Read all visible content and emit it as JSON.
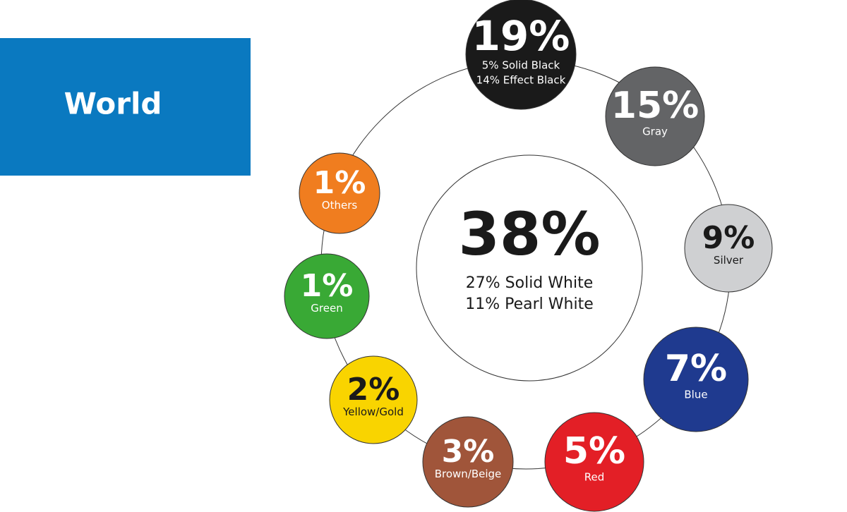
{
  "chart_data": {
    "type": "bubble",
    "title": "World",
    "title_color": "#0a79c0",
    "values": [
      38,
      19,
      15,
      9,
      7,
      5,
      3,
      2,
      1,
      1
    ],
    "value_labels": [
      "38%",
      "19%",
      "15%",
      "9%",
      "7%",
      "5%",
      "3%",
      "2%",
      "1%",
      "1%"
    ],
    "labels": [
      [
        "27% Solid White",
        "11% Pearl White"
      ],
      [
        "5% Solid Black",
        "14% Effect Black"
      ],
      [
        "Gray"
      ],
      [
        "Silver"
      ],
      [
        "Blue"
      ],
      [
        "Red"
      ],
      [
        "Brown/Beige"
      ],
      [
        "Yellow/Gold"
      ],
      [
        "Green"
      ],
      [
        "Others"
      ]
    ],
    "colors": [
      "#ffffff",
      "#1a1a1a",
      "#636466",
      "#cfd0d2",
      "#1f3a8f",
      "#e31f26",
      "#a0553a",
      "#f9d400",
      "#39a935",
      "#f07d1f"
    ]
  }
}
